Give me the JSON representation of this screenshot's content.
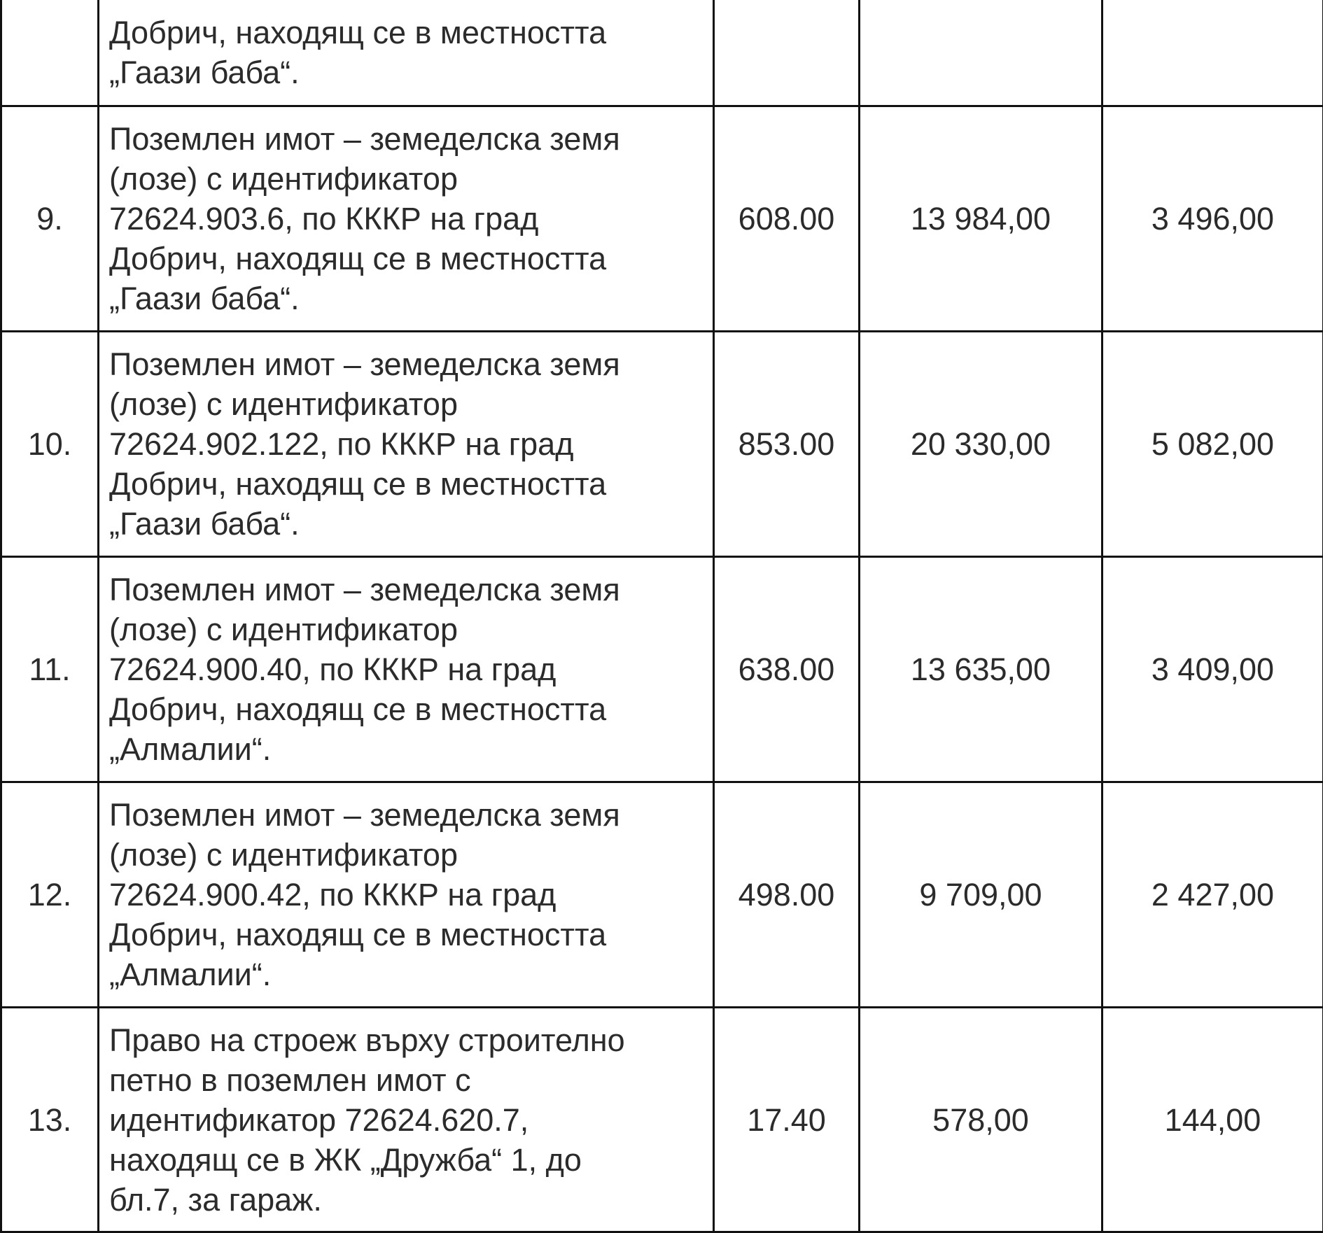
{
  "table": {
    "rows": [
      {
        "no": "",
        "description": "Добрич, находящ се в местността\n„Гаази баба“.",
        "area": "",
        "market_value": "",
        "tax_value": ""
      },
      {
        "no": "9.",
        "description": "Поземлен имот – земеделска земя\n(лозе) с идентификатор\n72624.903.6, по КККР на град\nДобрич, находящ се в местността\n„Гаази баба“.",
        "area": "608.00",
        "market_value": "13 984,00",
        "tax_value": "3 496,00"
      },
      {
        "no": "10.",
        "description": "Поземлен имот – земеделска земя\n(лозе) с идентификатор\n72624.902.122, по КККР на град\nДобрич, находящ се в местността\n„Гаази баба“.",
        "area": "853.00",
        "market_value": "20 330,00",
        "tax_value": "5 082,00"
      },
      {
        "no": "11.",
        "description": "Поземлен имот – земеделска земя\n(лозе) с идентификатор\n72624.900.40, по КККР на град\nДобрич, находящ се в местността\n„Алмалии“.",
        "area": "638.00",
        "market_value": "13 635,00",
        "tax_value": "3 409,00"
      },
      {
        "no": "12.",
        "description": "Поземлен имот – земеделска земя\n(лозе) с идентификатор\n72624.900.42, по КККР на град\nДобрич, находящ се в местността\n„Алмалии“.",
        "area": "498.00",
        "market_value": "9 709,00",
        "tax_value": "2 427,00"
      },
      {
        "no": "13.",
        "description": "Право на строеж върху строително\nпетно в поземлен имот с\nидентификатор 72624.620.7,\nнаходящ се в ЖК „Дружба“ 1, до\nбл.7, за гараж.",
        "area": "17.40",
        "market_value": "578,00",
        "tax_value": "144,00"
      }
    ]
  }
}
